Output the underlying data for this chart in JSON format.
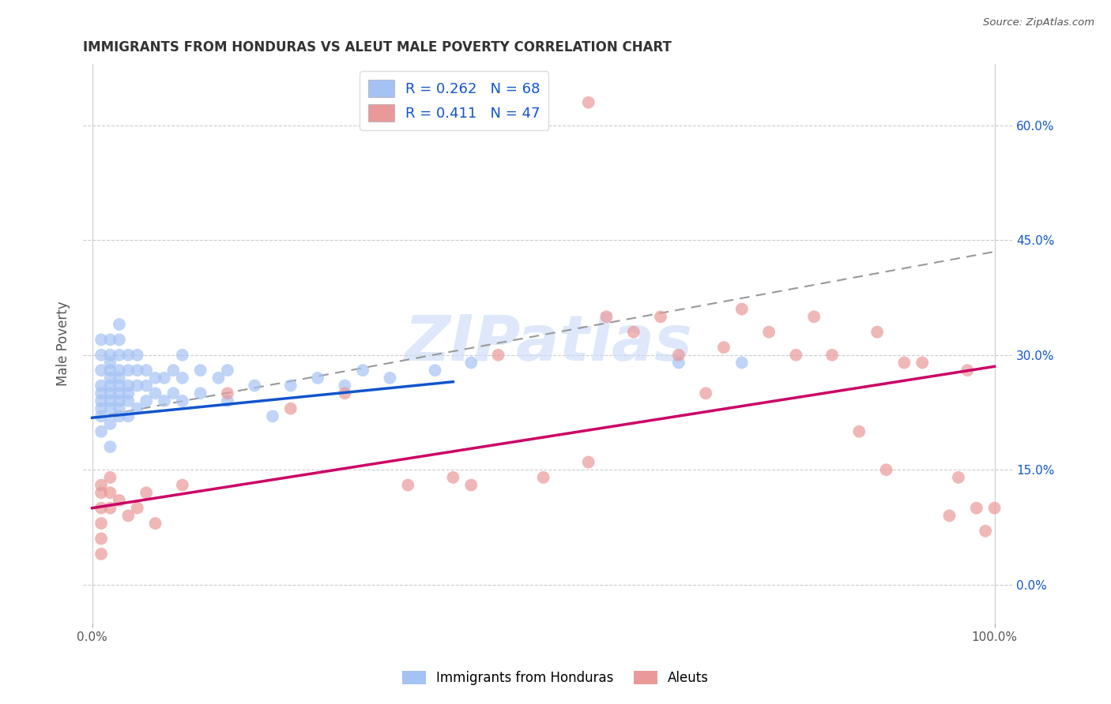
{
  "title": "IMMIGRANTS FROM HONDURAS VS ALEUT MALE POVERTY CORRELATION CHART",
  "source": "Source: ZipAtlas.com",
  "ylabel": "Male Poverty",
  "xlim": [
    -0.01,
    1.02
  ],
  "ylim": [
    -0.05,
    0.68
  ],
  "ytick_vals": [
    0.0,
    0.15,
    0.3,
    0.45,
    0.6
  ],
  "ytick_labels": [
    "0.0%",
    "15.0%",
    "30.0%",
    "45.0%",
    "60.0%"
  ],
  "blue_color": "#a4c2f4",
  "pink_color": "#ea9999",
  "blue_line_color": "#1155cc",
  "pink_line_color": "#cc0066",
  "dashed_line_color": "#999999",
  "watermark_color": "#c9daf8",
  "watermark_text": "ZIPatlas",
  "background_color": "#ffffff",
  "grid_color": "#cccccc",
  "legend_text_color": "#1155cc",
  "blue_scatter_x": [
    0.01,
    0.01,
    0.01,
    0.01,
    0.01,
    0.01,
    0.01,
    0.01,
    0.01,
    0.02,
    0.02,
    0.02,
    0.02,
    0.02,
    0.02,
    0.02,
    0.02,
    0.02,
    0.02,
    0.02,
    0.03,
    0.03,
    0.03,
    0.03,
    0.03,
    0.03,
    0.03,
    0.03,
    0.03,
    0.03,
    0.04,
    0.04,
    0.04,
    0.04,
    0.04,
    0.04,
    0.05,
    0.05,
    0.05,
    0.05,
    0.06,
    0.06,
    0.06,
    0.07,
    0.07,
    0.08,
    0.08,
    0.09,
    0.09,
    0.1,
    0.1,
    0.1,
    0.12,
    0.12,
    0.14,
    0.15,
    0.15,
    0.18,
    0.2,
    0.22,
    0.25,
    0.28,
    0.3,
    0.33,
    0.38,
    0.42,
    0.65,
    0.72
  ],
  "blue_scatter_y": [
    0.2,
    0.22,
    0.24,
    0.26,
    0.28,
    0.3,
    0.32,
    0.23,
    0.25,
    0.18,
    0.21,
    0.24,
    0.26,
    0.28,
    0.3,
    0.32,
    0.23,
    0.25,
    0.27,
    0.29,
    0.22,
    0.24,
    0.26,
    0.28,
    0.3,
    0.32,
    0.34,
    0.23,
    0.25,
    0.27,
    0.24,
    0.26,
    0.28,
    0.3,
    0.22,
    0.25,
    0.23,
    0.26,
    0.28,
    0.3,
    0.24,
    0.26,
    0.28,
    0.25,
    0.27,
    0.24,
    0.27,
    0.25,
    0.28,
    0.24,
    0.27,
    0.3,
    0.25,
    0.28,
    0.27,
    0.24,
    0.28,
    0.26,
    0.22,
    0.26,
    0.27,
    0.26,
    0.28,
    0.27,
    0.28,
    0.29,
    0.29,
    0.29
  ],
  "pink_scatter_x": [
    0.01,
    0.01,
    0.01,
    0.01,
    0.01,
    0.01,
    0.02,
    0.02,
    0.02,
    0.03,
    0.04,
    0.05,
    0.06,
    0.07,
    0.1,
    0.15,
    0.22,
    0.28,
    0.35,
    0.4,
    0.45,
    0.5,
    0.55,
    0.57,
    0.6,
    0.63,
    0.65,
    0.68,
    0.7,
    0.72,
    0.75,
    0.78,
    0.8,
    0.82,
    0.85,
    0.87,
    0.88,
    0.9,
    0.92,
    0.95,
    0.96,
    0.97,
    0.98,
    0.99,
    1.0,
    0.42,
    0.55
  ],
  "pink_scatter_y": [
    0.12,
    0.1,
    0.08,
    0.06,
    0.04,
    0.13,
    0.1,
    0.12,
    0.14,
    0.11,
    0.09,
    0.1,
    0.12,
    0.08,
    0.13,
    0.25,
    0.23,
    0.25,
    0.13,
    0.14,
    0.3,
    0.14,
    0.16,
    0.35,
    0.33,
    0.35,
    0.3,
    0.25,
    0.31,
    0.36,
    0.33,
    0.3,
    0.35,
    0.3,
    0.2,
    0.33,
    0.15,
    0.29,
    0.29,
    0.09,
    0.14,
    0.28,
    0.1,
    0.07,
    0.1,
    0.13,
    0.63
  ],
  "blue_line_x0": 0.0,
  "blue_line_y0": 0.218,
  "blue_line_x1": 0.4,
  "blue_line_y1": 0.265,
  "dashed_line_x0": 0.0,
  "dashed_line_y0": 0.218,
  "dashed_line_x1": 1.0,
  "dashed_line_y1": 0.435,
  "pink_line_x0": 0.0,
  "pink_line_y0": 0.1,
  "pink_line_x1": 1.0,
  "pink_line_y1": 0.285
}
